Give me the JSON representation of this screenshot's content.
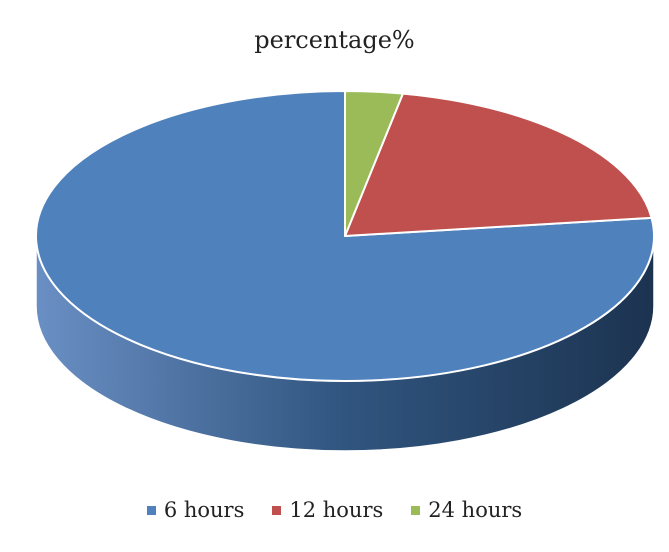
{
  "chart_data": {
    "type": "pie",
    "title": "percentage%",
    "categories": [
      "6 hours",
      "12 hours",
      "24 hours"
    ],
    "values": [
      77,
      20,
      3
    ],
    "colors": [
      "#4F81BD",
      "#C0504D",
      "#9BBB59"
    ],
    "side_colors": [
      "#3A6596",
      "#8E3A38",
      "#71893F"
    ],
    "legend_position": "bottom",
    "style": "3d"
  }
}
